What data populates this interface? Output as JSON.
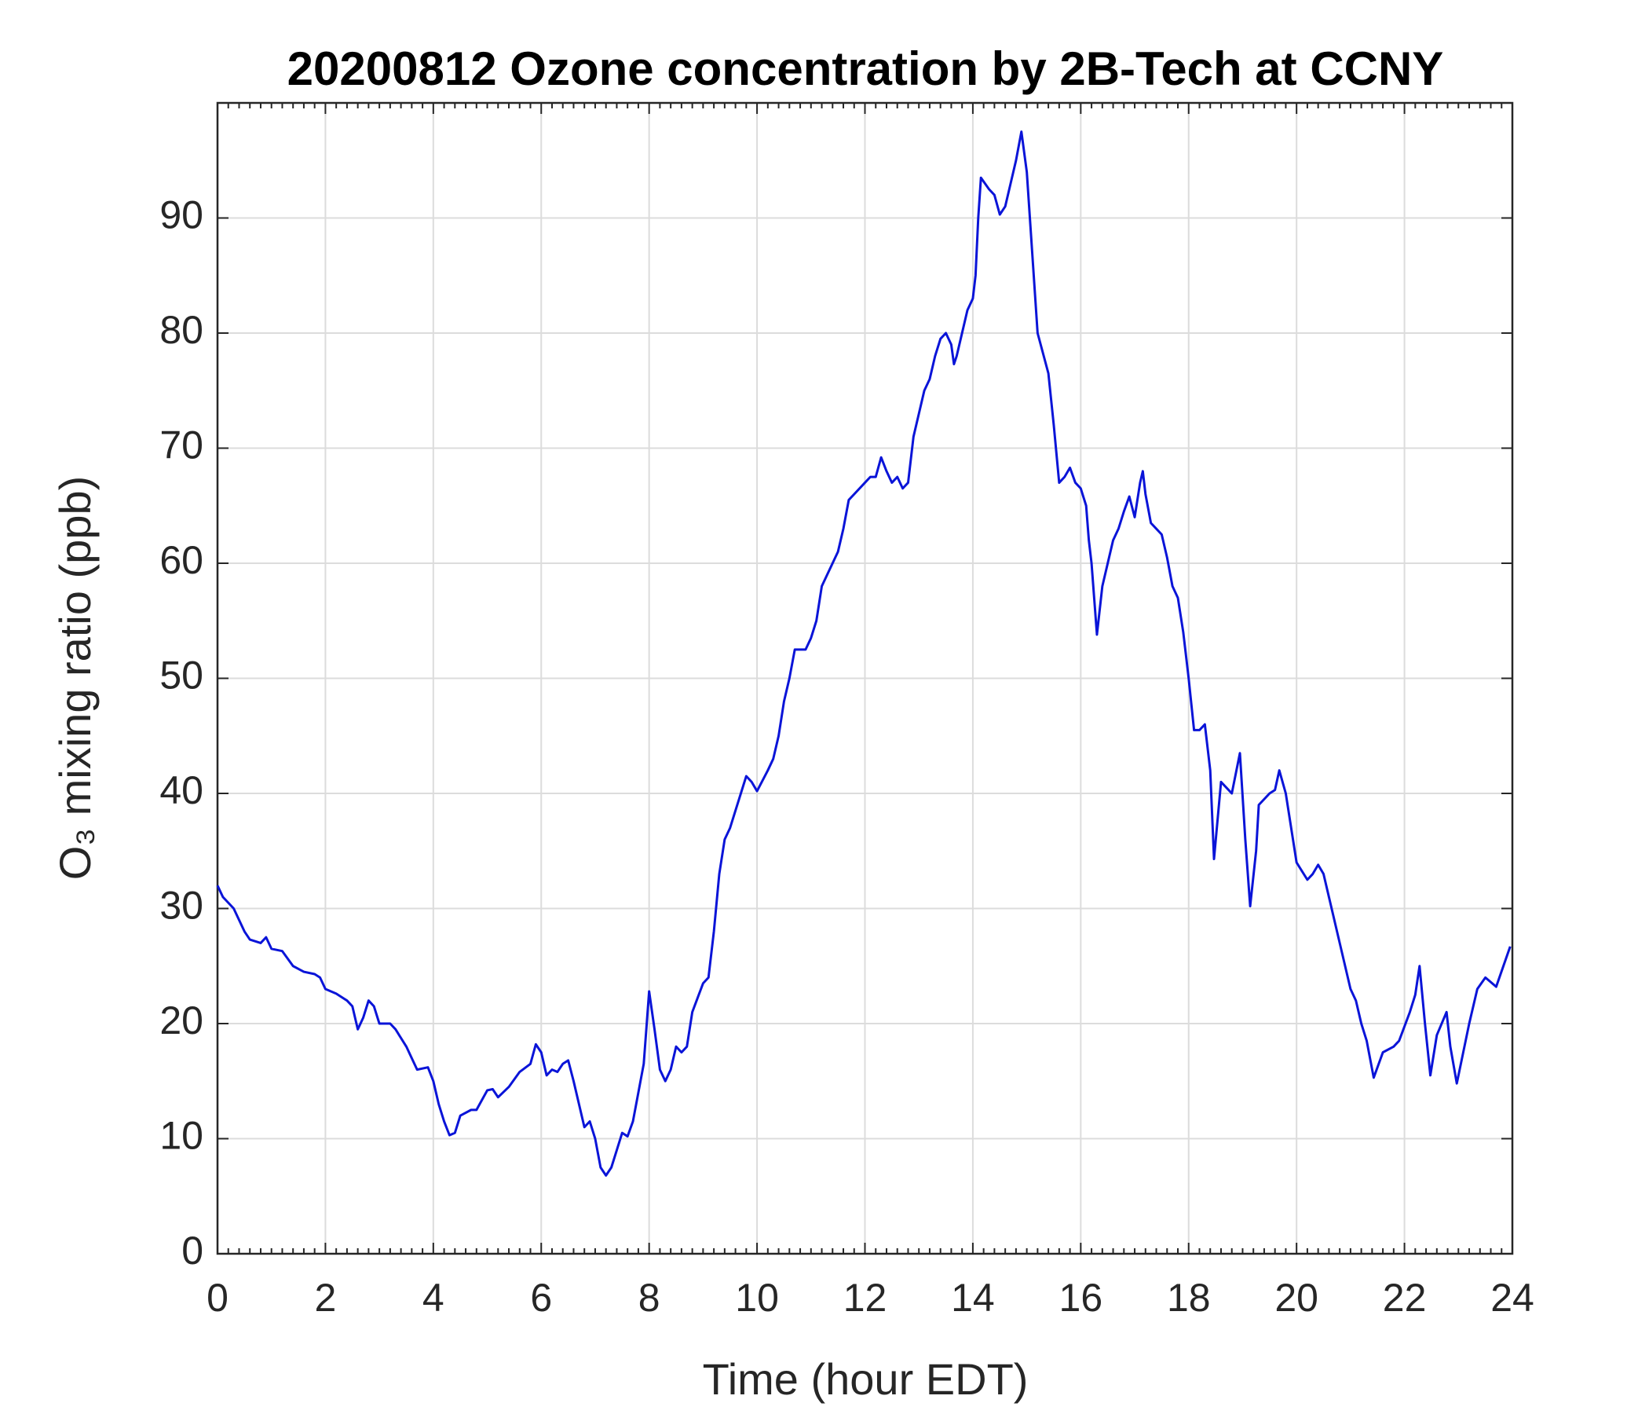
{
  "chart_data": {
    "type": "line",
    "title": "20200812 Ozone concentration by 2B-Tech at CCNY",
    "x_label": "Time (hour EDT)",
    "y_label": "O₃ mixing ratio (ppb)",
    "x": [
      0,
      0.1,
      0.3,
      0.5,
      0.6,
      0.8,
      0.9,
      1.0,
      1.2,
      1.4,
      1.6,
      1.8,
      1.9,
      2.0,
      2.2,
      2.4,
      2.5,
      2.6,
      2.7,
      2.8,
      2.9,
      3.0,
      3.2,
      3.3,
      3.5,
      3.6,
      3.7,
      3.9,
      4.0,
      4.1,
      4.2,
      4.3,
      4.4,
      4.5,
      4.7,
      4.8,
      5.0,
      5.1,
      5.2,
      5.4,
      5.6,
      5.8,
      5.9,
      6.0,
      6.1,
      6.2,
      6.3,
      6.4,
      6.5,
      6.6,
      6.7,
      6.8,
      6.9,
      7.0,
      7.1,
      7.2,
      7.3,
      7.4,
      7.5,
      7.6,
      7.7,
      7.8,
      7.9,
      8.0,
      8.1,
      8.2,
      8.3,
      8.4,
      8.5,
      8.6,
      8.7,
      8.8,
      9.0,
      9.1,
      9.2,
      9.3,
      9.4,
      9.5,
      9.6,
      9.7,
      9.8,
      9.9,
      10.0,
      10.2,
      10.3,
      10.4,
      10.5,
      10.6,
      10.7,
      10.8,
      10.9,
      11.0,
      11.1,
      11.2,
      11.3,
      11.4,
      11.5,
      11.6,
      11.7,
      11.8,
      12.0,
      12.1,
      12.2,
      12.3,
      12.4,
      12.5,
      12.6,
      12.7,
      12.8,
      12.9,
      13.0,
      13.1,
      13.2,
      13.3,
      13.4,
      13.5,
      13.6,
      13.65,
      13.7,
      13.8,
      13.9,
      14.0,
      14.05,
      14.1,
      14.15,
      14.3,
      14.4,
      14.5,
      14.6,
      14.7,
      14.8,
      14.9,
      15.0,
      15.1,
      15.2,
      15.4,
      15.5,
      15.6,
      15.7,
      15.8,
      15.9,
      16.0,
      16.1,
      16.15,
      16.2,
      16.3,
      16.4,
      16.5,
      16.6,
      16.7,
      16.8,
      16.9,
      17.0,
      17.1,
      17.15,
      17.2,
      17.3,
      17.4,
      17.5,
      17.6,
      17.7,
      17.8,
      17.9,
      18.0,
      18.1,
      18.2,
      18.3,
      18.4,
      18.47,
      18.6,
      18.7,
      18.8,
      18.95,
      19.05,
      19.14,
      19.25,
      19.3,
      19.5,
      19.6,
      19.68,
      19.8,
      20.0,
      20.2,
      20.3,
      20.4,
      20.5,
      20.6,
      20.8,
      21.0,
      21.1,
      21.2,
      21.3,
      21.43,
      21.6,
      21.8,
      21.9,
      22.1,
      22.2,
      22.28,
      22.38,
      22.48,
      22.6,
      22.78,
      22.85,
      22.97,
      23.2,
      23.35,
      23.5,
      23.7,
      23.96
    ],
    "values": [
      32,
      31,
      30,
      28,
      27.3,
      27,
      27.5,
      26.5,
      26.3,
      25,
      24.5,
      24.3,
      24,
      23,
      22.6,
      22,
      21.5,
      19.5,
      20.5,
      22,
      21.5,
      20,
      20,
      19.5,
      18,
      17,
      16,
      16.2,
      15,
      13,
      11.5,
      10.3,
      10.5,
      12,
      12.5,
      12.5,
      14.2,
      14.3,
      13.6,
      14.5,
      15.8,
      16.5,
      18.2,
      17.5,
      15.5,
      16,
      15.8,
      16.5,
      16.8,
      15,
      13,
      11,
      11.5,
      10,
      7.5,
      6.8,
      7.5,
      9,
      10.5,
      10.2,
      11.5,
      14,
      16.5,
      22.8,
      19.5,
      16,
      15,
      16,
      18,
      17.5,
      18,
      21,
      23.5,
      24,
      28,
      33,
      36,
      37,
      38.5,
      40,
      41.5,
      41,
      40.2,
      42,
      43,
      45,
      48,
      50,
      52.5,
      52.5,
      52.5,
      53.5,
      55,
      58,
      59,
      60,
      61,
      63,
      65.5,
      66,
      67,
      67.5,
      67.5,
      69.2,
      68,
      67,
      67.5,
      66.5,
      67,
      71,
      73,
      75,
      76,
      78,
      79.5,
      80,
      79,
      77.3,
      78,
      80,
      82,
      83,
      85,
      90,
      93.5,
      92.5,
      92,
      90.3,
      91,
      93,
      95,
      97.5,
      94,
      87,
      80,
      76.5,
      72,
      67,
      67.5,
      68.3,
      67,
      66.5,
      65,
      62,
      60,
      53.8,
      58,
      60,
      62,
      63,
      64.5,
      65.8,
      64,
      67,
      68,
      66,
      63.5,
      63,
      62.5,
      60.5,
      58,
      57,
      54,
      50,
      45.5,
      45.5,
      46,
      42,
      34.3,
      41,
      40.5,
      40,
      43.5,
      36,
      30.2,
      35,
      39,
      40,
      40.3,
      42,
      40,
      34,
      32.5,
      33,
      33.8,
      33,
      31,
      27,
      23,
      22,
      20,
      18.5,
      15.3,
      17.5,
      18,
      18.5,
      21,
      22.5,
      25,
      20,
      15.5,
      19,
      21,
      18,
      14.8,
      20,
      23,
      24,
      23.2,
      26.7
    ],
    "color": "#0a14d8",
    "xlim": [
      0,
      24
    ],
    "xticks": [
      0,
      2,
      4,
      6,
      8,
      10,
      12,
      14,
      16,
      18,
      20,
      22,
      24
    ],
    "ylim": [
      0,
      100
    ],
    "yticks": [
      0,
      10,
      20,
      30,
      40,
      50,
      60,
      70,
      80,
      90
    ],
    "grid": true
  }
}
